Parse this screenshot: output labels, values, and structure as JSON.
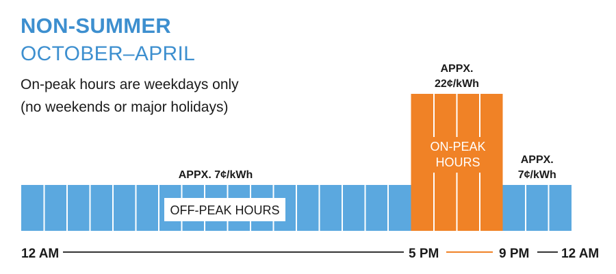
{
  "title": "NON-SUMMER",
  "subtitle": "OCTOBER–APRIL",
  "notes": [
    "On-peak hours are weekdays only",
    "(no weekends or major holidays)"
  ],
  "colors": {
    "title": "#3d8fcf",
    "off_peak": "#5ba8df",
    "on_peak": "#f08226",
    "axis": "#333333",
    "text": "#1a1a1a"
  },
  "chart_data": {
    "type": "bar",
    "unit": "¢/kWh",
    "periods": [
      {
        "name": "off-peak",
        "start_hour": 0,
        "end_hour": 17,
        "rate": 7,
        "rate_label": [
          "APPX. 7¢/kWh"
        ],
        "period_label": [
          "OFF-PEAK HOURS"
        ]
      },
      {
        "name": "on-peak",
        "start_hour": 17,
        "end_hour": 21,
        "rate": 22,
        "rate_label": [
          "APPX.",
          "22¢/kWh"
        ],
        "period_label": [
          "ON-PEAK",
          "HOURS"
        ]
      },
      {
        "name": "off-peak",
        "start_hour": 21,
        "end_hour": 24,
        "rate": 7,
        "rate_label": [
          "APPX.",
          "7¢/kWh"
        ],
        "period_label": []
      }
    ],
    "x_ticks": [
      {
        "hour": 0,
        "label": "12 AM"
      },
      {
        "hour": 17,
        "label": "5 PM"
      },
      {
        "hour": 21,
        "label": "9 PM"
      },
      {
        "hour": 24,
        "label": "12 AM"
      }
    ]
  }
}
